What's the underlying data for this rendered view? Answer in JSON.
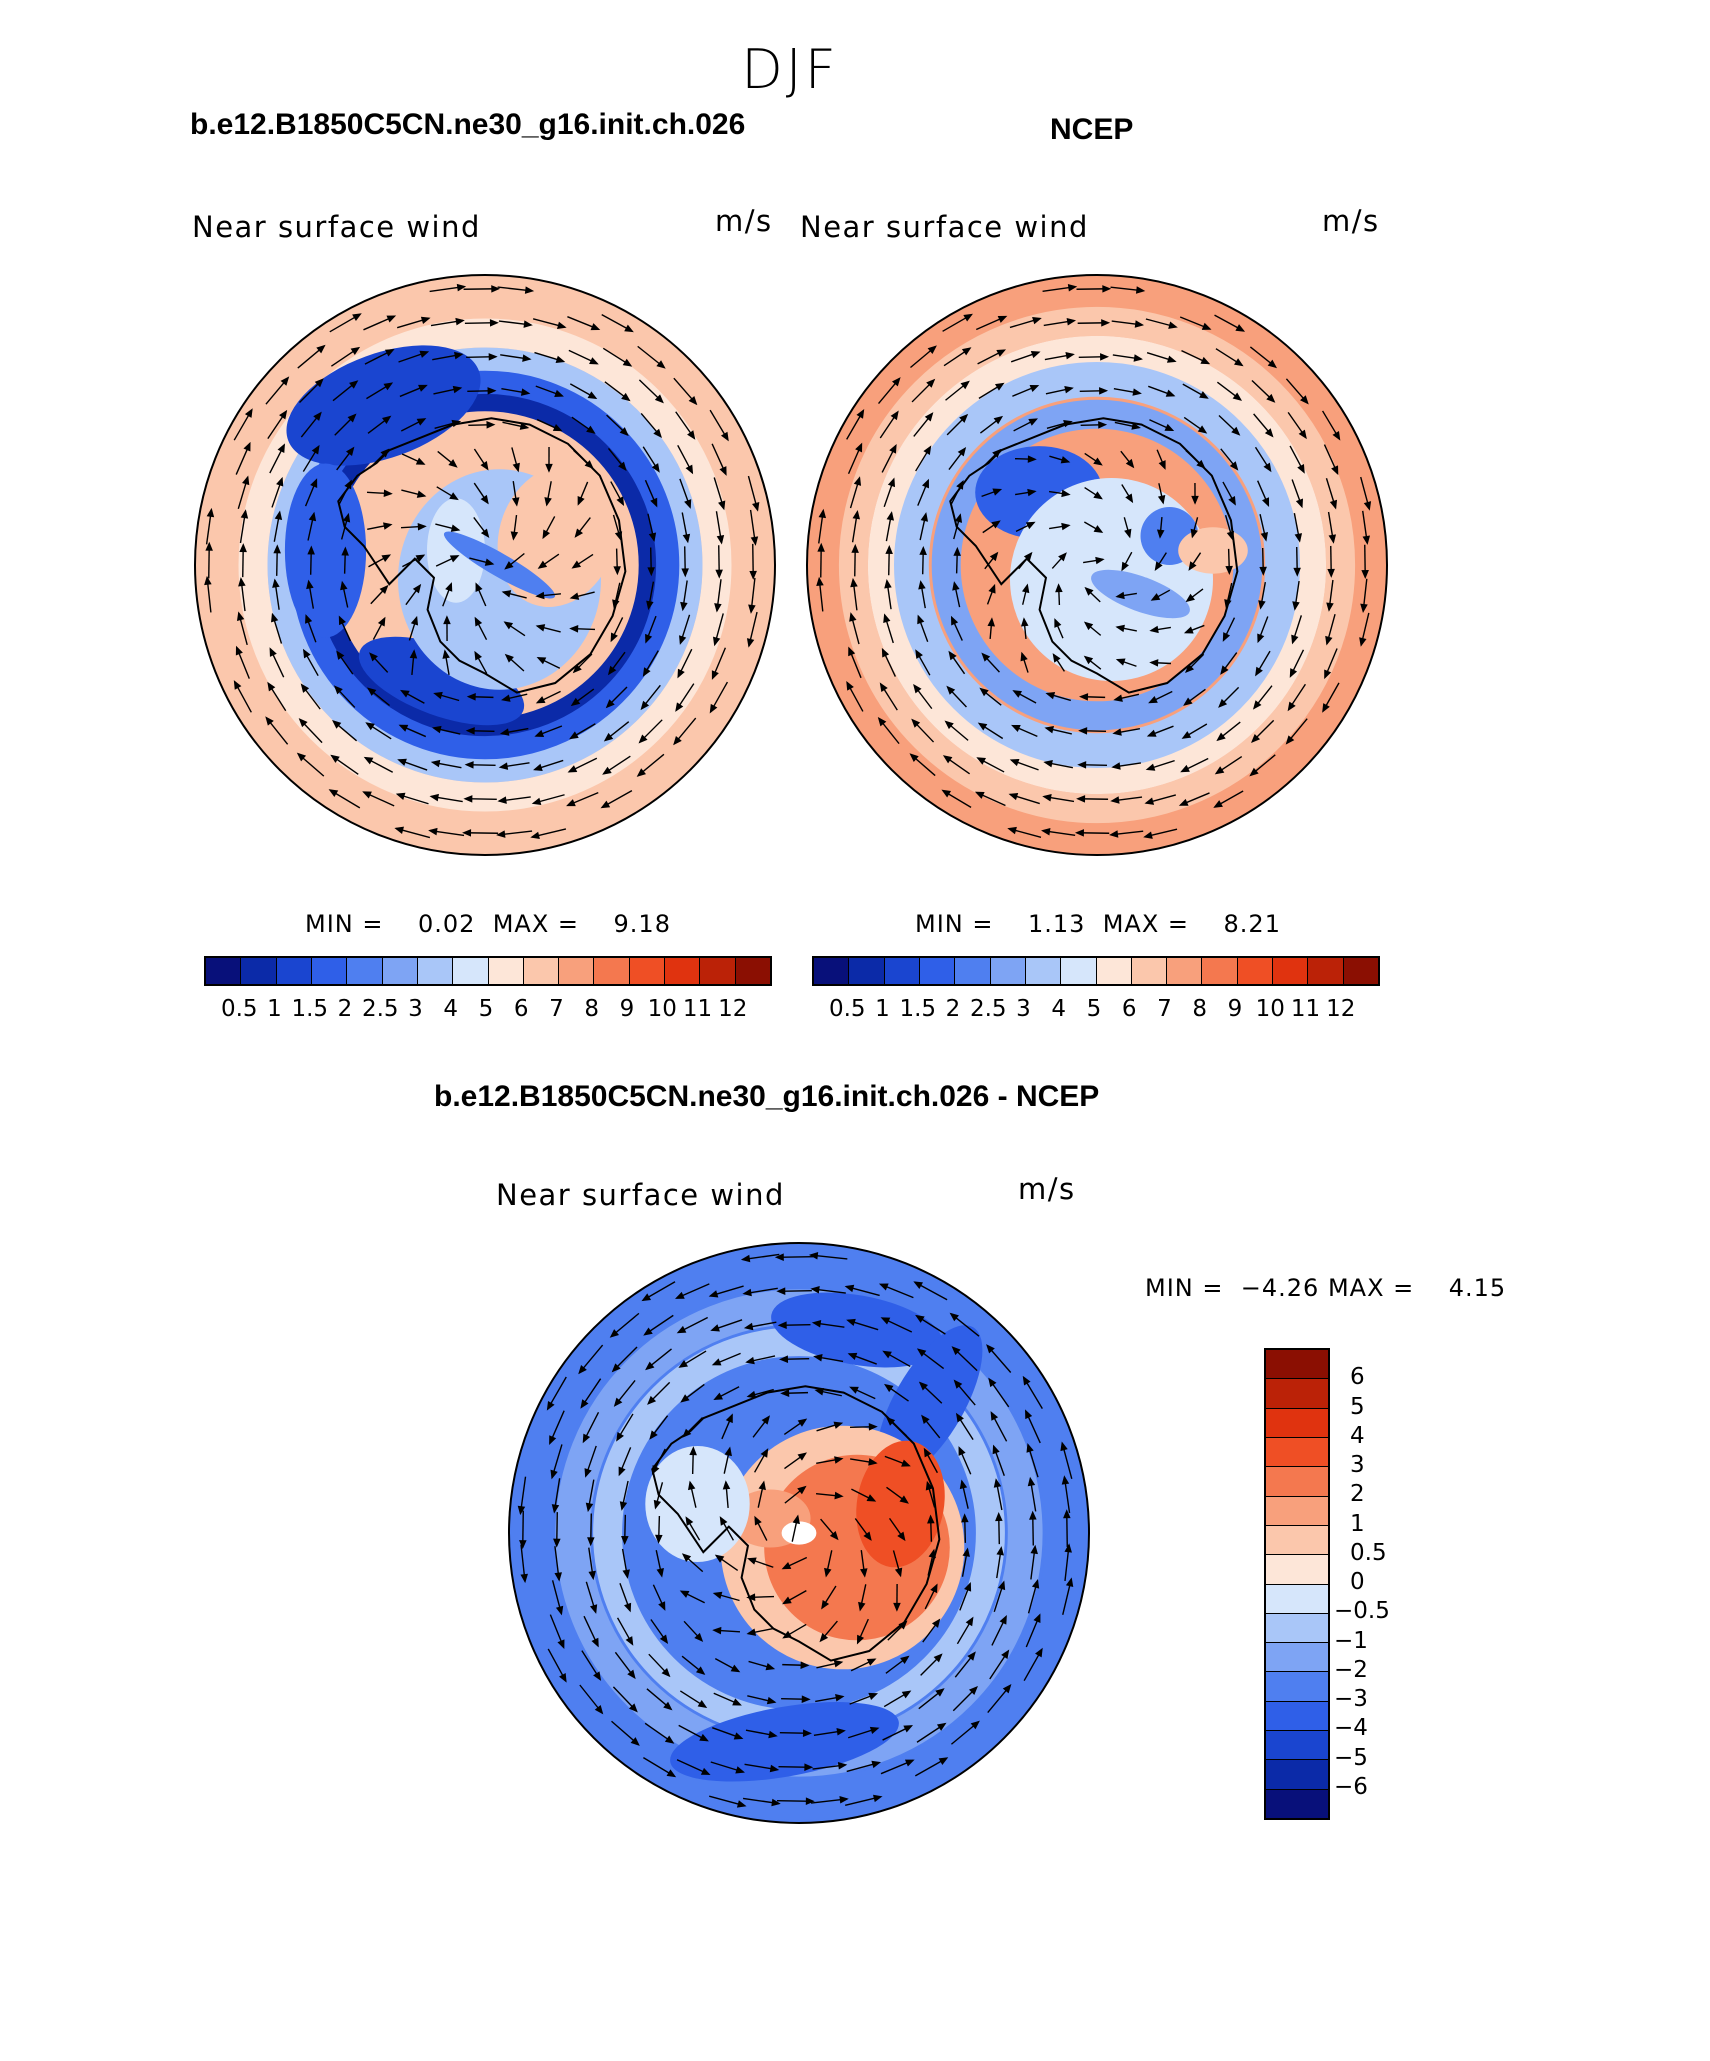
{
  "season": "DJF",
  "panels": [
    {
      "title": "b.e12.B1850C5CN.ne30_g16.init.ch.026",
      "variable": "Near surface wind",
      "units": "m/s",
      "min_label": "MIN =",
      "min_value": "0.02",
      "max_label": "MAX =",
      "max_value": "9.18"
    },
    {
      "title": "NCEP",
      "variable": "Near surface wind",
      "units": "m/s",
      "min_label": "MIN =",
      "min_value": "1.13",
      "max_label": "MAX =",
      "max_value": "8.21"
    },
    {
      "title": "b.e12.B1850C5CN.ne30_g16.init.ch.026 - NCEP",
      "variable": "Near surface wind",
      "units": "m/s",
      "min_label": "MIN =",
      "min_value": "−4.26",
      "max_label": "MAX =",
      "max_value": "4.15"
    }
  ],
  "colorbar_abs": {
    "ticks": [
      "0.5",
      "1",
      "1.5",
      "2",
      "2.5",
      "3",
      "4",
      "5",
      "6",
      "7",
      "8",
      "9",
      "10",
      "11",
      "12"
    ],
    "colors": [
      "#08107a",
      "#0b2aa8",
      "#1a45d0",
      "#2f5fe8",
      "#4f7ff0",
      "#7ea4f4",
      "#a9c6f8",
      "#d6e6fb",
      "#fde6d8",
      "#fbc7ac",
      "#f8a07c",
      "#f4784f",
      "#ef4f25",
      "#e0330f",
      "#bb2207",
      "#8b0f02"
    ]
  },
  "colorbar_diff": {
    "ticks": [
      "6",
      "5",
      "4",
      "3",
      "2",
      "1",
      "0.5",
      "0",
      "−0.5",
      "−1",
      "−2",
      "−3",
      "−4",
      "−5",
      "−6"
    ],
    "colors": [
      "#8b0f02",
      "#bb2207",
      "#e0330f",
      "#ef4f25",
      "#f4784f",
      "#f8a07c",
      "#fbc7ac",
      "#fde6d8",
      "#d6e6fb",
      "#a9c6f8",
      "#7ea4f4",
      "#4f7ff0",
      "#2f5fe8",
      "#1a45d0",
      "#0b2aa8",
      "#08107a"
    ]
  }
}
